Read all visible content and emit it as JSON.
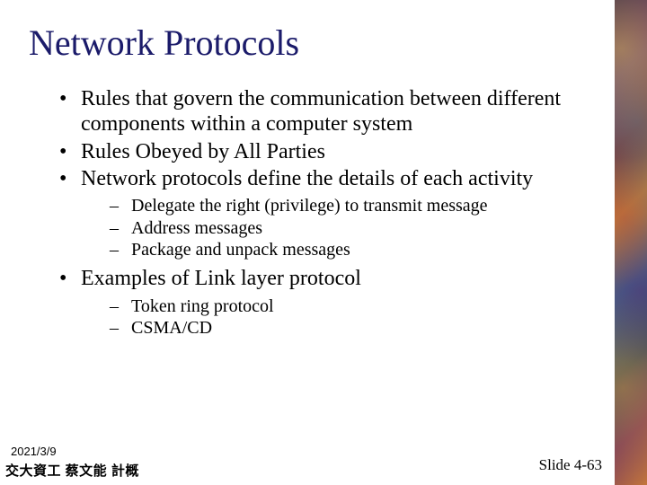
{
  "colors": {
    "title_color": "#1b1b6a",
    "body_color": "#000000",
    "background": "#ffffff"
  },
  "typography": {
    "title_fontsize": 40,
    "bullet_fontsize": 24,
    "subbullet_fontsize": 20,
    "footer_fontsize": 15,
    "slidenum_fontsize": 17,
    "font_family": "Times New Roman"
  },
  "title": "Network Protocols",
  "bullets": [
    {
      "text": "Rules that govern the communication between different components within a computer system"
    },
    {
      "text": "Rules Obeyed by All Parties"
    },
    {
      "text": "Network protocols define the details of each activity",
      "sub": [
        "Delegate the right (privilege) to transmit message",
        "Address messages",
        "Package and unpack messages"
      ]
    },
    {
      "text": "Examples of Link layer protocol",
      "sub": [
        "Token ring protocol",
        "CSMA/CD"
      ]
    }
  ],
  "footer": {
    "date": "2021/3/9",
    "left": "交大資工 蔡文能 計概",
    "right": "Slide 4-63"
  }
}
